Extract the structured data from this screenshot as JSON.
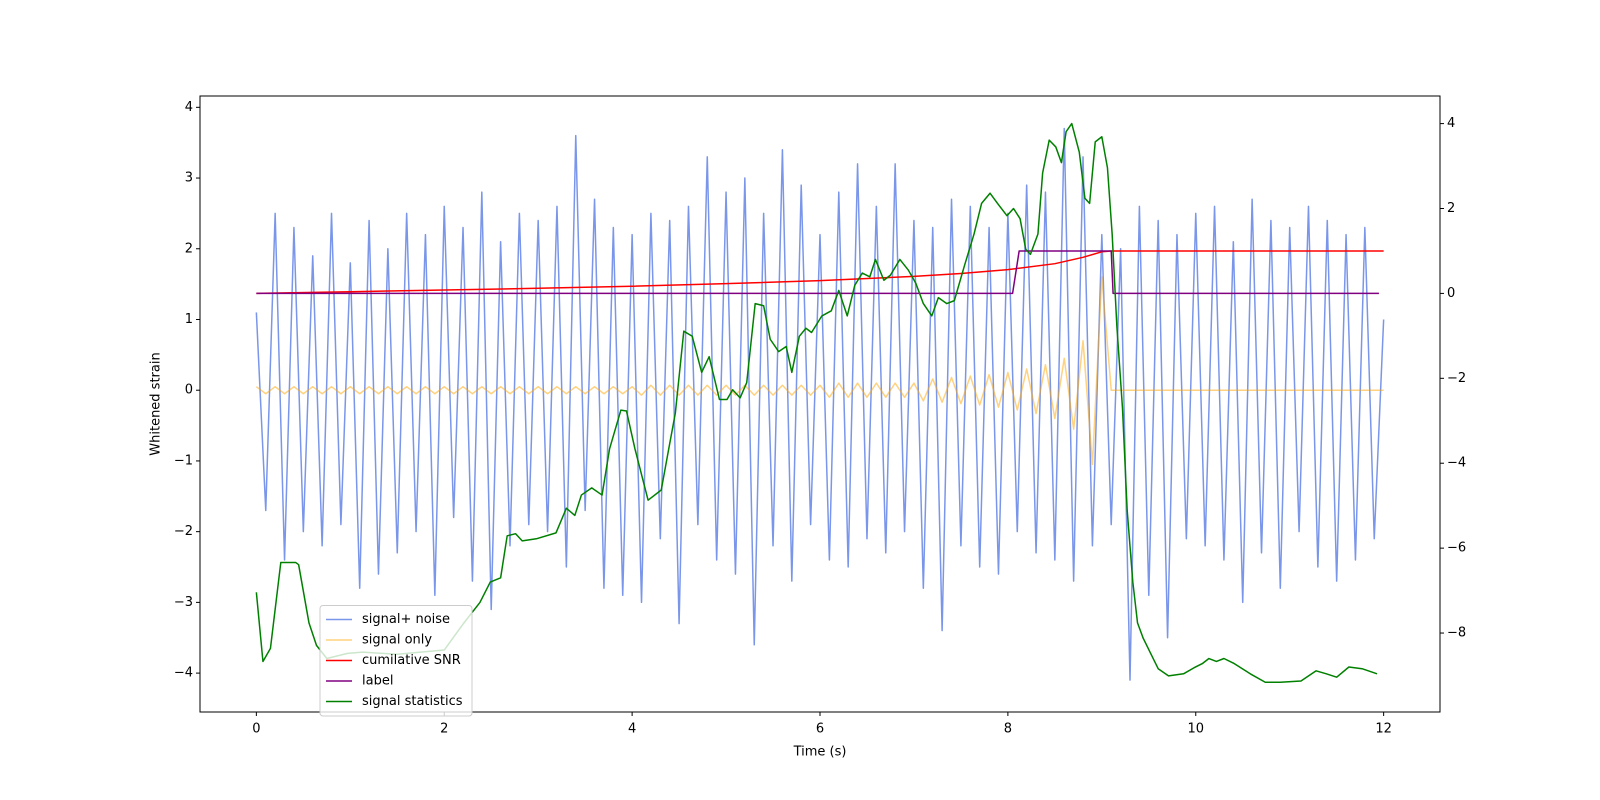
{
  "chart_data": {
    "type": "line",
    "xlabel": "Time (s)",
    "ylabel": "Whitened strain",
    "xlim": [
      -0.6,
      12.6
    ],
    "ylim": [
      -4.55,
      4.16
    ],
    "y2lim": [
      -9.86,
      4.65
    ],
    "xticks": [
      0,
      2,
      4,
      6,
      8,
      10,
      12
    ],
    "yticks": [
      {
        "value": -4,
        "label": "−4"
      },
      {
        "value": -3,
        "label": "−3"
      },
      {
        "value": -2,
        "label": "−2"
      },
      {
        "value": -1,
        "label": "−1"
      },
      0,
      1,
      2,
      3,
      4
    ],
    "y2ticks": [
      {
        "value": -8,
        "label": "−8"
      },
      {
        "value": -6,
        "label": "−6"
      },
      {
        "value": -4,
        "label": "−4"
      },
      {
        "value": -2,
        "label": "−2"
      },
      0,
      2,
      4
    ],
    "legend": "lower left",
    "x": [
      0,
      0.1,
      0.2,
      0.3,
      0.4,
      0.5,
      0.6,
      0.7,
      0.8,
      0.9,
      1,
      1.1,
      1.2,
      1.3,
      1.4,
      1.5,
      1.6,
      1.7,
      1.8,
      1.9,
      2,
      2.1,
      2.2,
      2.3,
      2.4,
      2.5,
      2.6,
      2.7,
      2.8,
      2.9,
      3,
      3.1,
      3.2,
      3.3,
      3.4,
      3.5,
      3.6,
      3.7,
      3.8,
      3.9,
      4,
      4.1,
      4.2,
      4.3,
      4.4,
      4.5,
      4.6,
      4.7,
      4.8,
      4.9,
      5,
      5.1,
      5.2,
      5.3,
      5.4,
      5.5,
      5.6,
      5.7,
      5.8,
      5.9,
      6,
      6.1,
      6.2,
      6.3,
      6.4,
      6.5,
      6.6,
      6.7,
      6.8,
      6.9,
      7,
      7.1,
      7.2,
      7.3,
      7.4,
      7.5,
      7.6,
      7.7,
      7.8,
      7.9,
      8,
      8.1,
      8.2,
      8.3,
      8.4,
      8.5,
      8.6,
      8.7,
      8.8,
      8.9,
      9,
      9.1,
      9.2,
      9.3,
      9.4,
      9.5,
      9.6,
      9.7,
      9.8,
      9.9,
      10,
      10.1,
      10.2,
      10.3,
      10.4,
      10.5,
      10.6,
      10.7,
      10.8,
      10.9,
      11,
      11.1,
      11.2,
      11.3,
      11.4,
      11.5,
      11.6,
      11.7,
      11.8,
      11.9,
      12
    ],
    "series": [
      {
        "name": "signal+ noise",
        "color": "#4169e1",
        "values": [
          1.1,
          -1.7,
          2.5,
          -2.4,
          2.3,
          -2.0,
          1.9,
          -2.2,
          2.5,
          -1.9,
          1.8,
          -2.8,
          2.4,
          -2.6,
          2.0,
          -2.3,
          2.5,
          -2.0,
          2.2,
          -2.9,
          2.6,
          -1.8,
          2.3,
          -2.7,
          2.8,
          -3.1,
          2.1,
          -2.2,
          2.5,
          -1.9,
          2.4,
          -2.0,
          2.6,
          -2.5,
          3.6,
          -1.7,
          2.7,
          -2.8,
          2.3,
          -2.9,
          2.2,
          -3.0,
          2.5,
          -2.1,
          2.4,
          -3.3,
          2.6,
          -1.9,
          3.3,
          -2.4,
          2.8,
          -2.6,
          3.0,
          -3.6,
          2.5,
          -2.2,
          3.4,
          -2.7,
          2.9,
          -1.9,
          2.2,
          -2.4,
          2.8,
          -2.5,
          3.2,
          -2.1,
          2.6,
          -2.3,
          3.2,
          -2.0,
          2.4,
          -2.8,
          2.3,
          -3.4,
          2.7,
          -2.2,
          2.6,
          -2.5,
          2.3,
          -2.6,
          2.5,
          -2.0,
          2.9,
          -2.3,
          2.8,
          -2.4,
          3.7,
          -2.7,
          3.3,
          -2.2,
          2.2,
          -1.9,
          2.0,
          -4.1,
          2.6,
          -2.9,
          2.4,
          -3.5,
          2.2,
          -2.1,
          2.5,
          -2.2,
          2.6,
          -2.4,
          2.1,
          -3.0,
          2.7,
          -2.3,
          2.4,
          -2.8,
          2.3,
          -2.0,
          2.6,
          -2.5,
          2.4,
          -2.7,
          2.2,
          -2.4,
          2.3,
          -2.1,
          1.0
        ]
      },
      {
        "name": "signal only",
        "color": "#ffa500",
        "values": [
          0.05,
          -0.05,
          0.05,
          -0.05,
          0.05,
          -0.05,
          0.05,
          -0.05,
          0.05,
          -0.05,
          0.05,
          -0.05,
          0.05,
          -0.05,
          0.05,
          -0.05,
          0.05,
          -0.05,
          0.05,
          -0.05,
          0.05,
          -0.05,
          0.05,
          -0.05,
          0.05,
          -0.05,
          0.05,
          -0.05,
          0.05,
          -0.05,
          0.05,
          -0.05,
          0.05,
          -0.05,
          0.05,
          -0.05,
          0.05,
          -0.05,
          0.05,
          -0.05,
          0.05,
          -0.07,
          0.07,
          -0.07,
          0.07,
          -0.07,
          0.07,
          -0.07,
          0.07,
          -0.07,
          0.07,
          -0.07,
          0.07,
          -0.07,
          0.07,
          -0.07,
          0.07,
          -0.07,
          0.07,
          -0.07,
          0.07,
          -0.1,
          0.1,
          -0.1,
          0.1,
          -0.1,
          0.1,
          -0.1,
          0.1,
          -0.1,
          0.1,
          -0.15,
          0.16,
          -0.17,
          0.18,
          -0.19,
          0.2,
          -0.21,
          0.22,
          -0.24,
          0.25,
          -0.28,
          0.3,
          -0.33,
          0.36,
          -0.4,
          0.45,
          -0.55,
          0.7,
          -1.05,
          1.6,
          0,
          0,
          0,
          0,
          0,
          0,
          0,
          0,
          0,
          0,
          0,
          0,
          0,
          0,
          0,
          0,
          0,
          0,
          0,
          0,
          0,
          0,
          0,
          0,
          0,
          0,
          0,
          0,
          0,
          0
        ]
      },
      {
        "name": "cumilative SNR",
        "color": "#ff0000",
        "axis": "y2",
        "x": [
          0,
          1,
          2,
          3,
          4,
          5,
          6,
          7,
          7.5,
          8,
          8.5,
          8.8,
          9,
          9.1,
          10,
          11,
          12
        ],
        "values": [
          0,
          0.04,
          0.08,
          0.12,
          0.17,
          0.23,
          0.3,
          0.4,
          0.47,
          0.56,
          0.7,
          0.85,
          0.98,
          1,
          1,
          1,
          1
        ]
      },
      {
        "name": "label",
        "color": "#800080",
        "axis": "y2",
        "x": [
          0,
          8.05,
          8.12,
          9.1,
          9.12,
          11.95
        ],
        "values": [
          0,
          0,
          1,
          1,
          0,
          0
        ]
      },
      {
        "name": "signal statistics",
        "color": "#008000",
        "axis": "y2",
        "x": [
          0,
          0.07,
          0.15,
          0.26,
          0.42,
          0.45,
          0.56,
          0.64,
          0.75,
          0.97,
          1.13,
          1.5,
          2.0,
          2.21,
          2.38,
          2.49,
          2.6,
          2.67,
          2.76,
          2.83,
          2.98,
          3.19,
          3.3,
          3.39,
          3.46,
          3.57,
          3.68,
          3.76,
          3.88,
          3.94,
          4.03,
          4.17,
          4.31,
          4.39,
          4.46,
          4.55,
          4.64,
          4.74,
          4.82,
          4.93,
          5.01,
          5.07,
          5.15,
          5.22,
          5.31,
          5.4,
          5.47,
          5.56,
          5.64,
          5.7,
          5.78,
          5.85,
          5.91,
          6.02,
          6.12,
          6.2,
          6.29,
          6.37,
          6.45,
          6.53,
          6.59,
          6.68,
          6.75,
          6.85,
          6.94,
          7.02,
          7.1,
          7.19,
          7.26,
          7.35,
          7.43,
          7.54,
          7.64,
          7.72,
          7.81,
          7.89,
          7.99,
          8.06,
          8.13,
          8.19,
          8.24,
          8.32,
          8.37,
          8.44,
          8.51,
          8.57,
          8.62,
          8.68,
          8.76,
          8.82,
          8.87,
          8.93,
          9.0,
          9.06,
          9.11,
          9.16,
          9.22,
          9.27,
          9.33,
          9.38,
          9.44,
          9.52,
          9.6,
          9.71,
          9.87,
          9.98,
          10.07,
          10.14,
          10.22,
          10.3,
          10.41,
          10.58,
          10.74,
          10.9,
          11.12,
          11.28,
          11.39,
          11.5,
          11.63,
          11.77,
          11.93
        ],
        "values": [
          -7.04,
          -8.67,
          -8.36,
          -6.34,
          -6.34,
          -6.39,
          -7.76,
          -8.29,
          -8.6,
          -8.48,
          -8.45,
          -8.5,
          -8.4,
          -7.76,
          -7.28,
          -6.8,
          -6.7,
          -5.71,
          -5.66,
          -5.83,
          -5.78,
          -5.64,
          -5.06,
          -5.23,
          -4.75,
          -4.58,
          -4.75,
          -3.66,
          -2.75,
          -2.77,
          -3.66,
          -4.87,
          -4.63,
          -3.66,
          -2.82,
          -0.89,
          -1.01,
          -1.86,
          -1.49,
          -2.5,
          -2.5,
          -2.27,
          -2.46,
          -2.1,
          -0.24,
          -0.29,
          -1.08,
          -1.37,
          -1.25,
          -1.86,
          -1.01,
          -0.82,
          -0.92,
          -0.53,
          -0.41,
          0.07,
          -0.53,
          0.19,
          0.48,
          0.39,
          0.8,
          0.31,
          0.43,
          0.8,
          0.55,
          0.24,
          -0.24,
          -0.53,
          -0.1,
          -0.24,
          -0.17,
          0.67,
          1.4,
          2.12,
          2.36,
          2.12,
          1.83,
          2.0,
          1.76,
          1.04,
          0.92,
          1.4,
          2.84,
          3.61,
          3.45,
          3.08,
          3.81,
          4.0,
          3.33,
          2.24,
          2.12,
          3.57,
          3.69,
          2.96,
          1.4,
          -0.77,
          -2.7,
          -5.11,
          -6.8,
          -7.76,
          -8.12,
          -8.48,
          -8.84,
          -9.01,
          -8.96,
          -8.82,
          -8.72,
          -8.6,
          -8.67,
          -8.6,
          -8.72,
          -8.96,
          -9.16,
          -9.16,
          -9.13,
          -8.89,
          -8.96,
          -9.04,
          -8.8,
          -8.84,
          -8.96
        ]
      }
    ]
  }
}
